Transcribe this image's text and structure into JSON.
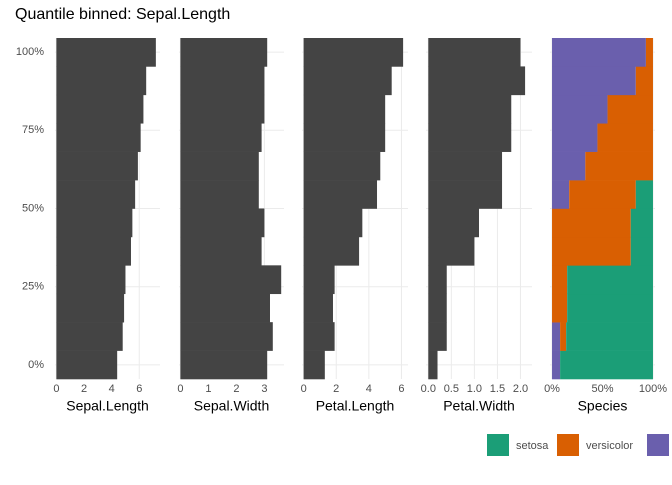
{
  "chart_data": [
    {
      "type": "bar",
      "title": "Quantile binned: Sepal.Length",
      "x_label": "Sepal.Length",
      "color": "#444444",
      "values": [
        4.4,
        4.8,
        4.9,
        5.0,
        5.4,
        5.5,
        5.7,
        5.9,
        6.1,
        6.3,
        6.5,
        7.2
      ],
      "xlim": [
        -0.1,
        7.5
      ],
      "xticks": [
        0,
        2,
        4,
        6
      ],
      "ylim": [
        -4.5,
        104.5
      ],
      "yticks": [
        {
          "value": 0,
          "label": "0%"
        },
        {
          "value": 25,
          "label": "25%"
        },
        {
          "value": 50,
          "label": "50%"
        },
        {
          "value": 75,
          "label": "75%"
        },
        {
          "value": 100,
          "label": "100%"
        }
      ],
      "grid": true
    },
    {
      "type": "bar",
      "x_label": "Sepal.Width",
      "color": "#444444",
      "values": [
        3.1,
        3.3,
        3.2,
        3.6,
        2.9,
        3.0,
        2.8,
        2.8,
        2.9,
        3.0,
        3.0,
        3.1
      ],
      "xlim": [
        -0.05,
        3.7
      ],
      "xticks": [
        0,
        1,
        2,
        3
      ],
      "ylim": [
        -4.5,
        104.5
      ],
      "grid": true
    },
    {
      "type": "bar",
      "x_label": "Petal.Length",
      "color": "#444444",
      "values": [
        1.3,
        1.9,
        1.8,
        1.9,
        3.4,
        3.6,
        4.5,
        4.7,
        5.0,
        5.0,
        5.4,
        6.1
      ],
      "xlim": [
        -0.1,
        6.4
      ],
      "xticks": [
        0,
        2,
        4,
        6
      ],
      "ylim": [
        -4.5,
        104.5
      ],
      "grid": true
    },
    {
      "type": "bar",
      "x_label": "Petal.Width",
      "color": "#444444",
      "values": [
        0.2,
        0.4,
        0.4,
        0.4,
        1.0,
        1.1,
        1.6,
        1.6,
        1.8,
        1.8,
        2.1,
        2.0
      ],
      "xlim": [
        -0.05,
        2.25
      ],
      "xticks": [
        {
          "value": 0,
          "label": "0.0"
        },
        0.5,
        {
          "value": 1,
          "label": "1.0"
        },
        1.5,
        {
          "value": 2,
          "label": "2.0"
        }
      ],
      "ylim": [
        -4.5,
        104.5
      ],
      "grid": true
    },
    {
      "type": "stacked_bar",
      "x_label": "Species",
      "legend": "bottom-right",
      "series": [
        {
          "name": "setosa",
          "color": "#1b9e77",
          "values": [
            92,
            86,
            85,
            85,
            22,
            22,
            17,
            0,
            0,
            0,
            0,
            0
          ]
        },
        {
          "name": "versicolor",
          "color": "#d95f02",
          "values": [
            0,
            6,
            15,
            15,
            78,
            78,
            66,
            67,
            55,
            45,
            17,
            7
          ]
        },
        {
          "color": "#6a5fad",
          "values": [
            8,
            8,
            0,
            0,
            0,
            0,
            17,
            33,
            45,
            55,
            83,
            93
          ]
        }
      ],
      "xlim": [
        -2,
        102
      ],
      "xticks": [
        {
          "value": 0,
          "label": "0%"
        },
        {
          "value": 50,
          "label": "50%"
        },
        {
          "value": 100,
          "label": "100%"
        }
      ],
      "ylim": [
        -4.5,
        104.5
      ],
      "grid": true
    }
  ]
}
